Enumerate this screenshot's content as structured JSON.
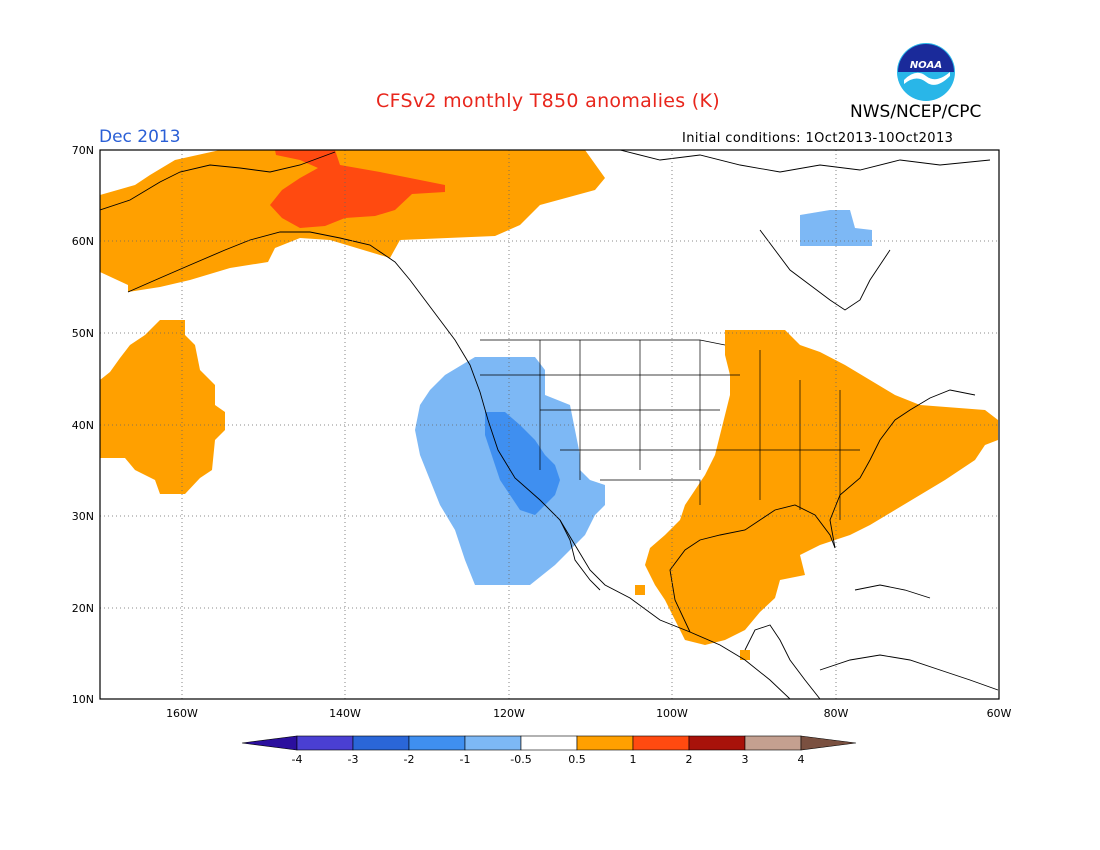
{
  "header": {
    "title": "CFSv2 monthly T850 anomalies (K)",
    "agency": "NWS/NCEP/CPC",
    "logo_text": "NOAA",
    "valid_month": "Dec 2013",
    "initial_conditions": "Initial conditions: 1Oct2013-10Oct2013"
  },
  "map": {
    "lat_labels": [
      "70N",
      "60N",
      "50N",
      "40N",
      "30N",
      "20N",
      "10N"
    ],
    "lon_labels": [
      "160W",
      "140W",
      "120W",
      "100W",
      "80W",
      "60W"
    ],
    "lat_range": [
      10,
      70
    ],
    "lon_range": [
      -170,
      -60
    ]
  },
  "colorbar": {
    "tick_labels": [
      "-4",
      "-3",
      "-2",
      "-1",
      "-0.5",
      "0.5",
      "1",
      "2",
      "3",
      "4"
    ],
    "colors": [
      "#2b0f9e",
      "#4a3fd2",
      "#2a66d8",
      "#3f8ff0",
      "#7db8f5",
      "#ffffff",
      "#ffa000",
      "#ff4a10",
      "#a8120a",
      "#c4a090",
      "#7a5040"
    ]
  },
  "colors": {
    "title": "#e8261c",
    "month": "#2a5fd6",
    "orange": "#ffa000",
    "red": "#ff4a10",
    "light_blue": "#7db8f5",
    "mid_blue": "#3f8ff0"
  }
}
